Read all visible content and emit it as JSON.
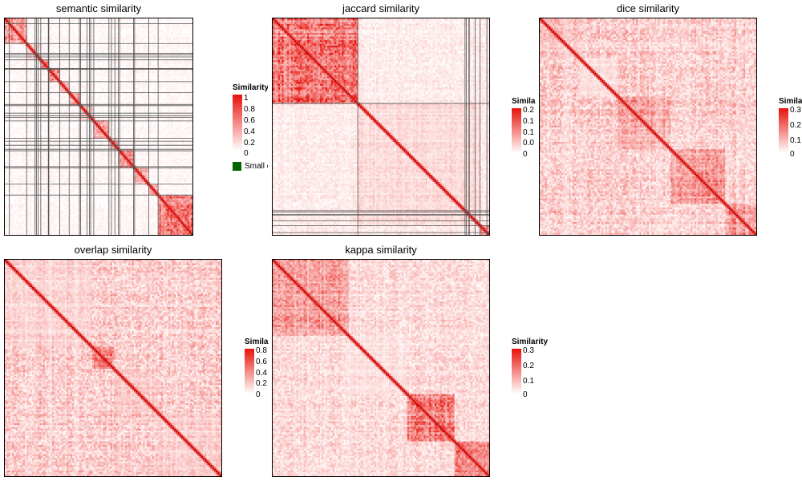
{
  "colors": {
    "low": "#ffffff",
    "high": "#e8120b",
    "diagonal": "#c40000",
    "small_cluster": "#006400",
    "border": "#000000"
  },
  "chart_data": [
    {
      "type": "heatmap",
      "title": "semantic similarity",
      "legend": {
        "title": "Similarity",
        "ticks": [
          "1",
          "0.8",
          "0.6",
          "0.4",
          "0.2",
          "0"
        ],
        "extra_label": "Small cluster"
      },
      "value_range": [
        0,
        1
      ],
      "matrix_size": 120,
      "cluster_blocks": [
        {
          "start": 0.0,
          "end": 0.115,
          "level": 0.45
        },
        {
          "start": 0.115,
          "end": 0.19,
          "level": 0.15
        },
        {
          "start": 0.19,
          "end": 0.23,
          "level": 0.5
        },
        {
          "start": 0.23,
          "end": 0.29,
          "level": 0.45
        },
        {
          "start": 0.29,
          "end": 0.34,
          "level": 0.3
        },
        {
          "start": 0.34,
          "end": 0.4,
          "level": 0.35
        },
        {
          "start": 0.4,
          "end": 0.47,
          "level": 0.2
        },
        {
          "start": 0.47,
          "end": 0.55,
          "level": 0.45
        },
        {
          "start": 0.55,
          "end": 0.6,
          "level": 0.3
        },
        {
          "start": 0.6,
          "end": 0.68,
          "level": 0.45
        },
        {
          "start": 0.68,
          "end": 0.76,
          "level": 0.3
        },
        {
          "start": 0.76,
          "end": 0.81,
          "level": 0.4
        },
        {
          "start": 0.81,
          "end": 1.0,
          "level": 0.55
        }
      ],
      "background_level": 0.04,
      "has_cluster_lines": true
    },
    {
      "type": "heatmap",
      "title": "jaccard similarity",
      "legend": {
        "title": "Similarity",
        "ticks": [
          "0.2",
          "0.1",
          "0.1",
          "0.0",
          "0"
        ]
      },
      "value_range": [
        0,
        0.25
      ],
      "matrix_size": 120,
      "cluster_blocks": [
        {
          "start": 0.0,
          "end": 0.39,
          "level": 0.55
        },
        {
          "start": 0.39,
          "end": 0.95,
          "level": 0.15
        },
        {
          "start": 0.95,
          "end": 1.0,
          "level": 0.35
        }
      ],
      "background_level": 0.08,
      "has_cluster_lines": true
    },
    {
      "type": "heatmap",
      "title": "dice similarity",
      "legend": {
        "title": "Similarity",
        "ticks": [
          "0.3",
          "0.2",
          "0.1",
          "0"
        ]
      },
      "value_range": [
        0,
        0.35
      ],
      "matrix_size": 120,
      "cluster_blocks": [
        {
          "start": 0.0,
          "end": 0.18,
          "level": 0.25
        },
        {
          "start": 0.18,
          "end": 0.36,
          "level": 0.12
        },
        {
          "start": 0.36,
          "end": 0.6,
          "level": 0.35
        },
        {
          "start": 0.6,
          "end": 0.85,
          "level": 0.45
        },
        {
          "start": 0.85,
          "end": 1.0,
          "level": 0.45
        }
      ],
      "background_level": 0.2,
      "has_cluster_lines": false
    },
    {
      "type": "heatmap",
      "title": "overlap similarity",
      "legend": {
        "title": "Similarity",
        "ticks": [
          "0.8",
          "0.6",
          "0.4",
          "0.2",
          "0"
        ]
      },
      "value_range": [
        0,
        0.9
      ],
      "matrix_size": 120,
      "cluster_blocks": [
        {
          "start": 0.0,
          "end": 0.4,
          "level": 0.18
        },
        {
          "start": 0.4,
          "end": 0.5,
          "level": 0.5
        },
        {
          "start": 0.5,
          "end": 0.7,
          "level": 0.22
        },
        {
          "start": 0.7,
          "end": 1.0,
          "level": 0.2
        }
      ],
      "background_level": 0.2,
      "has_cluster_lines": false
    },
    {
      "type": "heatmap",
      "title": "kappa similarity",
      "legend": {
        "title": "Similarity",
        "ticks": [
          "0.3",
          "0.2",
          "0.1",
          "0"
        ]
      },
      "value_range": [
        0,
        0.35
      ],
      "matrix_size": 120,
      "cluster_blocks": [
        {
          "start": 0.0,
          "end": 0.35,
          "level": 0.4
        },
        {
          "start": 0.35,
          "end": 0.62,
          "level": 0.12
        },
        {
          "start": 0.62,
          "end": 0.83,
          "level": 0.5
        },
        {
          "start": 0.83,
          "end": 1.0,
          "level": 0.5
        }
      ],
      "background_level": 0.15,
      "has_cluster_lines": false
    }
  ]
}
